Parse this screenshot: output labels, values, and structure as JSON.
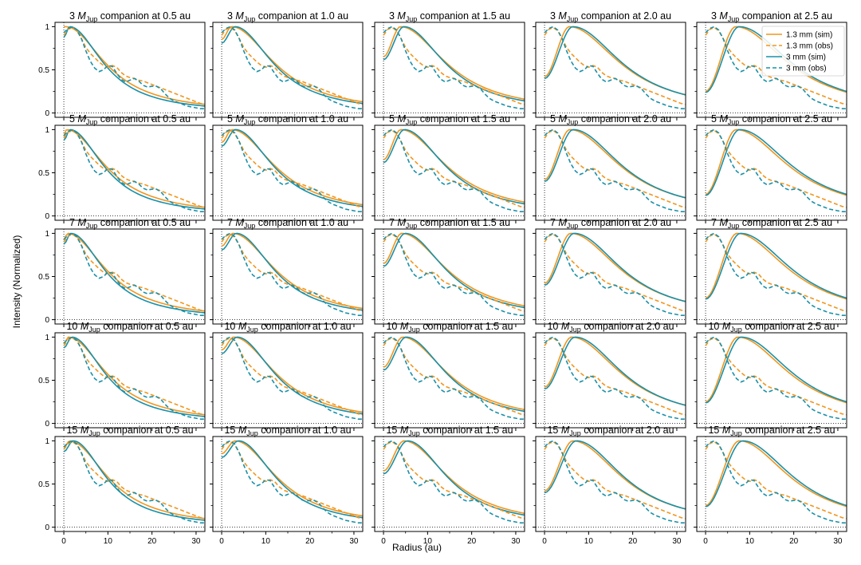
{
  "chart_data": {
    "type": "line",
    "layout": "grid 5 rows x 5 columns",
    "xlabel": "Radius (au)",
    "ylabel": "Intensity (Normalized)",
    "xlim": [
      -2,
      32
    ],
    "ylim": [
      -0.05,
      1.05
    ],
    "xticks": [
      "0",
      "10",
      "20",
      "30"
    ],
    "yticks": [
      "0",
      "0.5",
      "1"
    ],
    "title_prefix": "M",
    "title_subscript": "Jup",
    "masses": [
      "3",
      "5",
      "7",
      "10",
      "15"
    ],
    "distances": [
      "0.5",
      "1.0",
      "1.5",
      "2.0",
      "2.5"
    ],
    "title_suffix_template": " companion at {d} au",
    "panels_note": "25 panels; rows = companion mass (3, 5, 7, 10, 15 M_Jup), columns = companion orbit (0.5, 1.0, 1.5, 2.0, 2.5 au)",
    "reference_lines": {
      "x": 0,
      "y": 0,
      "style": "dotted"
    },
    "legend": {
      "placement": "top-right of panel row 1 col 5",
      "entries": [
        "1.3 mm (sim)",
        "1.3 mm (obs)",
        "3 mm (sim)",
        "3 mm (obs)"
      ]
    },
    "colors": {
      "band_1p3mm": "#f0961e",
      "band_3mm": "#1a90a8"
    },
    "observed": {
      "x": [
        0,
        1,
        2,
        3,
        4,
        5,
        6,
        7,
        8,
        9,
        10,
        11,
        12,
        13,
        14,
        15,
        16,
        17,
        18,
        19,
        20,
        21,
        22,
        23,
        24,
        25,
        26,
        27,
        28,
        29,
        30,
        31,
        32
      ],
      "series": [
        {
          "name": "1.3 mm (obs)",
          "values": [
            0.9,
            0.97,
            0.99,
            0.95,
            0.86,
            0.76,
            0.69,
            0.64,
            0.59,
            0.55,
            0.53,
            0.55,
            0.53,
            0.47,
            0.43,
            0.41,
            0.4,
            0.38,
            0.37,
            0.35,
            0.33,
            0.31,
            0.29,
            0.27,
            0.25,
            0.23,
            0.21,
            0.19,
            0.17,
            0.15,
            0.13,
            0.11,
            0.1
          ]
        },
        {
          "name": "3 mm (obs)",
          "values": [
            0.93,
            0.98,
            1.0,
            0.96,
            0.86,
            0.72,
            0.6,
            0.52,
            0.48,
            0.5,
            0.55,
            0.54,
            0.46,
            0.39,
            0.36,
            0.38,
            0.4,
            0.37,
            0.32,
            0.3,
            0.31,
            0.31,
            0.28,
            0.22,
            0.17,
            0.14,
            0.12,
            0.1,
            0.08,
            0.07,
            0.06,
            0.05,
            0.05
          ]
        }
      ]
    },
    "simulated_profile_model": {
      "description": "Simulated 1.3 mm and 3 mm profiles for each panel: peak near the companion gap edge, outward shift with orbit distance and mass; read off the figure.",
      "peak_radius_au_by_column": [
        0.5,
        2.2,
        3.8,
        5.6,
        6.8
      ],
      "mass_peak_shift_au_by_row": [
        0.0,
        0.1,
        0.3,
        0.5,
        0.8
      ],
      "band_3mm_extra_shift_au": 0.8,
      "inner_value_at_r0": [
        0.92,
        0.85,
        0.65,
        0.42,
        0.25
      ],
      "outer_value_at_32au": {
        "1.3 mm (sim)": [
          0.1,
          0.13,
          0.16,
          0.21,
          0.24
        ],
        "3 mm (sim)": [
          0.08,
          0.11,
          0.14,
          0.21,
          0.25
        ]
      }
    }
  }
}
